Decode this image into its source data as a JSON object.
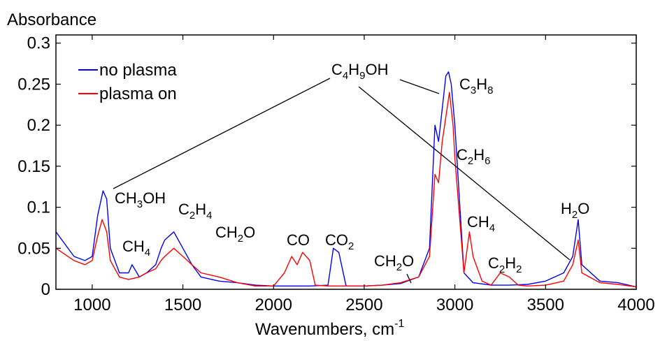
{
  "chart_data": {
    "type": "line",
    "title": "",
    "ylabel": "Absorbance",
    "xlabel": "Wavenumbers, cm",
    "xlabel_sup": "-1",
    "xlim": [
      800,
      4000
    ],
    "ylim": [
      0,
      0.31
    ],
    "xticks": [
      1000,
      1500,
      2000,
      2500,
      3000,
      3500,
      4000
    ],
    "xtick_labels": [
      "1000",
      "1500",
      "2000",
      "2500",
      "3000",
      "3500",
      "4000"
    ],
    "yticks": [
      0,
      0.05,
      0.1,
      0.15,
      0.2,
      0.25,
      0.3
    ],
    "ytick_labels": [
      "0",
      "0.05",
      "0.1",
      "0.15",
      "0.2",
      "0.25",
      "0.3"
    ],
    "grid": false,
    "legend_position": "top-left",
    "series": [
      {
        "name": "no plasma",
        "color": "#0000ff",
        "x": [
          800,
          900,
          960,
          1000,
          1030,
          1060,
          1080,
          1100,
          1150,
          1200,
          1220,
          1260,
          1300,
          1350,
          1380,
          1400,
          1450,
          1500,
          1550,
          1600,
          1700,
          1800,
          1900,
          2000,
          2100,
          2200,
          2300,
          2330,
          2360,
          2400,
          2500,
          2600,
          2700,
          2800,
          2860,
          2890,
          2910,
          2930,
          2950,
          2965,
          2980,
          3000,
          3050,
          3100,
          3200,
          3300,
          3400,
          3500,
          3600,
          3650,
          3680,
          3700,
          3800,
          3900,
          4000
        ],
        "y": [
          0.07,
          0.04,
          0.035,
          0.04,
          0.09,
          0.12,
          0.11,
          0.05,
          0.02,
          0.02,
          0.03,
          0.015,
          0.02,
          0.03,
          0.05,
          0.06,
          0.07,
          0.05,
          0.03,
          0.015,
          0.01,
          0.008,
          0.005,
          0.004,
          0.004,
          0.004,
          0.005,
          0.05,
          0.045,
          0.004,
          0.004,
          0.005,
          0.007,
          0.015,
          0.05,
          0.2,
          0.18,
          0.22,
          0.26,
          0.265,
          0.25,
          0.2,
          0.02,
          0.008,
          0.005,
          0.005,
          0.006,
          0.01,
          0.02,
          0.04,
          0.085,
          0.03,
          0.01,
          0.008,
          0.003
        ]
      },
      {
        "name": "plasma on",
        "color": "#ff0000",
        "x": [
          800,
          900,
          960,
          1000,
          1030,
          1055,
          1080,
          1100,
          1150,
          1200,
          1260,
          1300,
          1350,
          1380,
          1400,
          1450,
          1500,
          1550,
          1600,
          1700,
          1800,
          1900,
          2000,
          2060,
          2100,
          2130,
          2160,
          2200,
          2230,
          2300,
          2400,
          2500,
          2600,
          2700,
          2800,
          2860,
          2890,
          2910,
          2930,
          2950,
          2970,
          2990,
          3000,
          3050,
          3080,
          3100,
          3150,
          3200,
          3250,
          3300,
          3350,
          3400,
          3500,
          3600,
          3650,
          3680,
          3700,
          3800,
          3900,
          4000
        ],
        "y": [
          0.05,
          0.035,
          0.03,
          0.035,
          0.065,
          0.085,
          0.07,
          0.035,
          0.015,
          0.012,
          0.015,
          0.02,
          0.025,
          0.035,
          0.04,
          0.05,
          0.04,
          0.03,
          0.02,
          0.015,
          0.008,
          0.004,
          0.004,
          0.02,
          0.04,
          0.03,
          0.045,
          0.035,
          0.005,
          0.004,
          0.004,
          0.004,
          0.005,
          0.008,
          0.015,
          0.04,
          0.14,
          0.13,
          0.18,
          0.21,
          0.24,
          0.2,
          0.16,
          0.02,
          0.07,
          0.04,
          0.01,
          0.005,
          0.02,
          0.015,
          0.005,
          0.004,
          0.005,
          0.01,
          0.03,
          0.06,
          0.02,
          0.008,
          0.006,
          0.003
        ]
      }
    ],
    "annotations": [
      {
        "base": "C",
        "sub1": "4",
        "mid": "H",
        "sub2": "9",
        "tail": "OH"
      },
      {
        "base": "C",
        "sub1": "3",
        "mid": "H",
        "sub2": "8",
        "tail": ""
      },
      {
        "base": "C",
        "sub1": "2",
        "mid": "H",
        "sub2": "6",
        "tail": ""
      },
      {
        "base": "CH",
        "sub1": "3",
        "mid": "OH",
        "sub2": "",
        "tail": ""
      },
      {
        "base": "C",
        "sub1": "2",
        "mid": "H",
        "sub2": "4",
        "tail": ""
      },
      {
        "base": "CH",
        "sub1": "4",
        "mid": "",
        "sub2": "",
        "tail": ""
      },
      {
        "base": "CH",
        "sub1": "2",
        "mid": "O",
        "sub2": "",
        "tail": ""
      },
      {
        "base": "CO",
        "sub1": "",
        "mid": "",
        "sub2": "",
        "tail": ""
      },
      {
        "base": "CO",
        "sub1": "2",
        "mid": "",
        "sub2": "",
        "tail": ""
      },
      {
        "base": "CH",
        "sub1": "2",
        "mid": "O",
        "sub2": "",
        "tail": ""
      },
      {
        "base": "CH",
        "sub1": "4",
        "mid": "",
        "sub2": "",
        "tail": ""
      },
      {
        "base": "C",
        "sub1": "2",
        "mid": "H",
        "sub2": "2",
        "tail": ""
      },
      {
        "base": "H",
        "sub1": "2",
        "mid": "O",
        "sub2": "",
        "tail": ""
      }
    ]
  }
}
